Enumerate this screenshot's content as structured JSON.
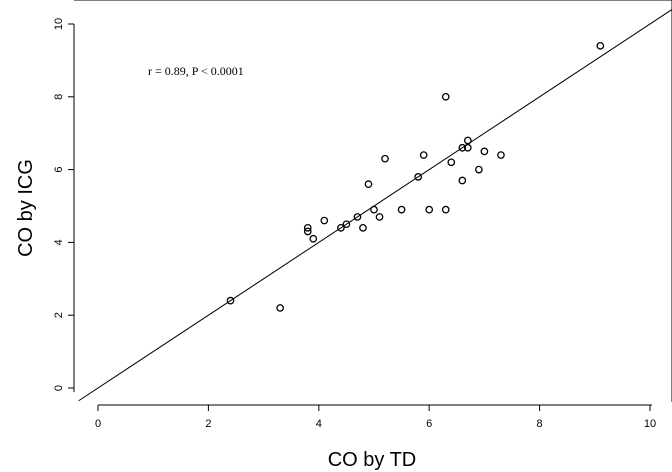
{
  "chart_data": {
    "type": "scatter",
    "title": "",
    "xlabel": "CO by TD",
    "ylabel": "CO by ICG",
    "xlim": [
      -0.4,
      10.3
    ],
    "ylim": [
      -0.4,
      10.4
    ],
    "xticks": [
      0,
      2,
      4,
      6,
      8,
      10
    ],
    "yticks": [
      0,
      2,
      4,
      6,
      8,
      10
    ],
    "grid": false,
    "annotation": "r = 0.89, P < 0.0001",
    "identity_line": true,
    "points": [
      {
        "x": 2.4,
        "y": 2.4
      },
      {
        "x": 3.3,
        "y": 2.2
      },
      {
        "x": 3.8,
        "y": 4.4
      },
      {
        "x": 3.8,
        "y": 4.3
      },
      {
        "x": 3.9,
        "y": 4.1
      },
      {
        "x": 4.1,
        "y": 4.6
      },
      {
        "x": 4.4,
        "y": 4.4
      },
      {
        "x": 4.5,
        "y": 4.5
      },
      {
        "x": 4.7,
        "y": 4.7
      },
      {
        "x": 4.8,
        "y": 4.4
      },
      {
        "x": 4.9,
        "y": 5.6
      },
      {
        "x": 5.0,
        "y": 4.9
      },
      {
        "x": 5.1,
        "y": 4.7
      },
      {
        "x": 5.2,
        "y": 6.3
      },
      {
        "x": 5.5,
        "y": 4.9
      },
      {
        "x": 5.8,
        "y": 5.8
      },
      {
        "x": 5.9,
        "y": 6.4
      },
      {
        "x": 6.0,
        "y": 4.9
      },
      {
        "x": 6.3,
        "y": 4.9
      },
      {
        "x": 6.3,
        "y": 8.0
      },
      {
        "x": 6.4,
        "y": 6.2
      },
      {
        "x": 6.6,
        "y": 6.6
      },
      {
        "x": 6.6,
        "y": 5.7
      },
      {
        "x": 6.7,
        "y": 6.8
      },
      {
        "x": 6.7,
        "y": 6.6
      },
      {
        "x": 6.9,
        "y": 6.0
      },
      {
        "x": 7.0,
        "y": 6.5
      },
      {
        "x": 7.3,
        "y": 6.4
      },
      {
        "x": 9.1,
        "y": 9.4
      }
    ]
  }
}
